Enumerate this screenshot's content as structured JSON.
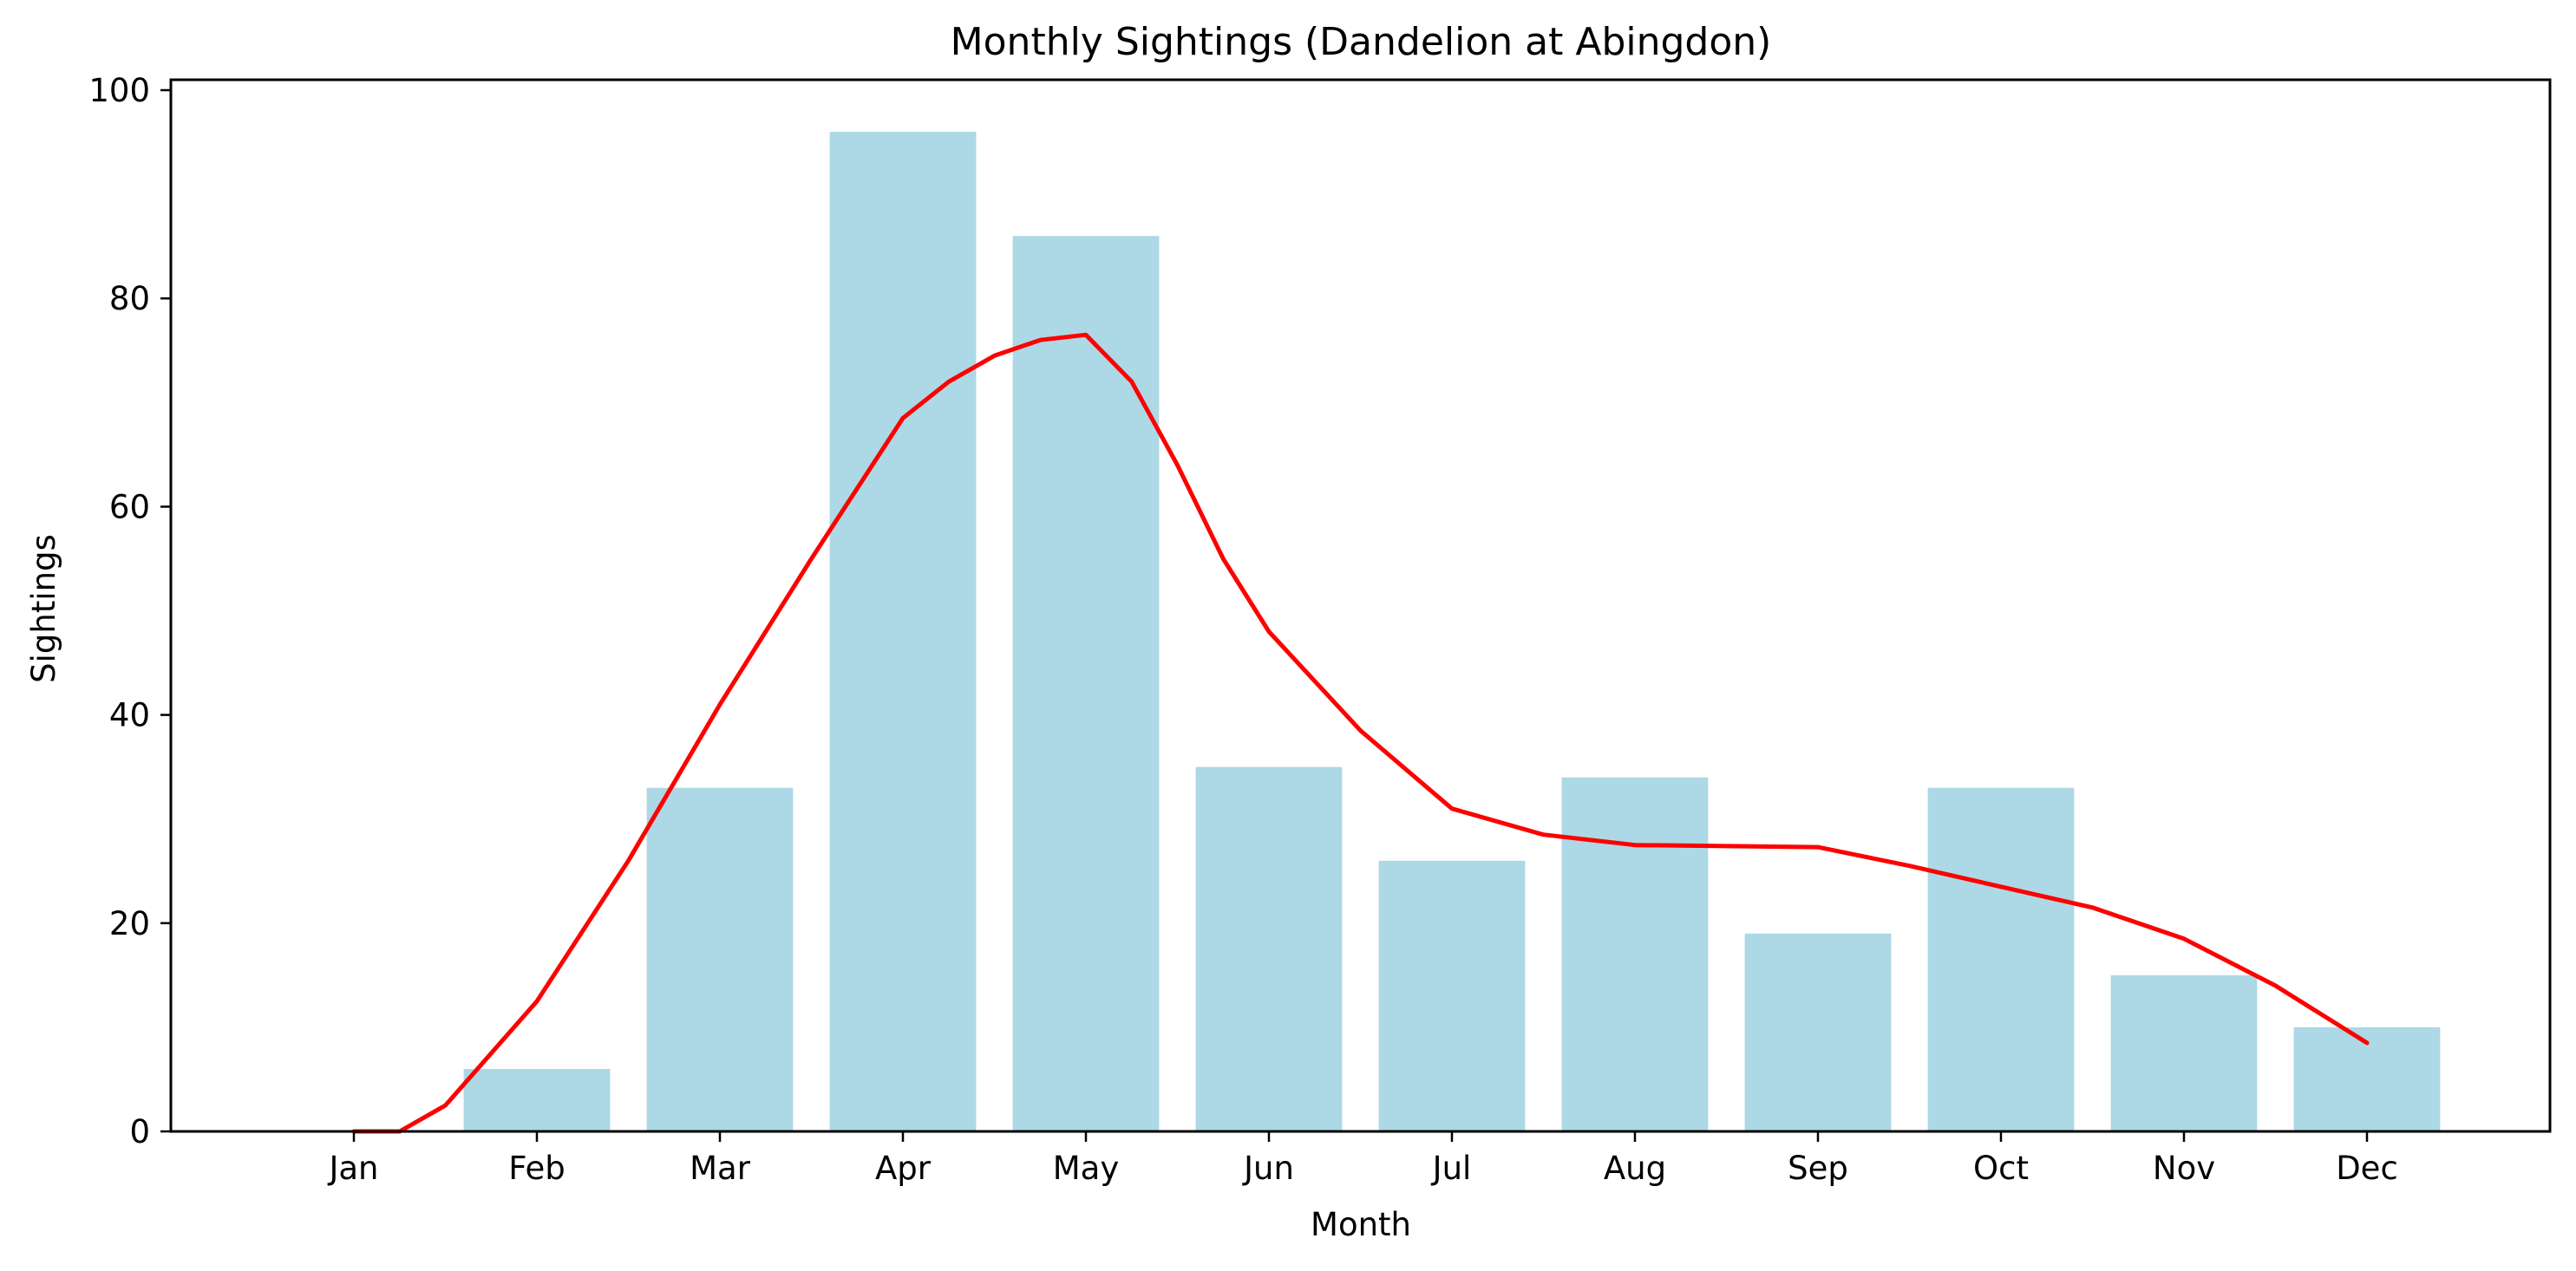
{
  "chart_data": {
    "type": "bar",
    "title": "Monthly Sightings (Dandelion at Abingdon)",
    "xlabel": "Month",
    "ylabel": "Sightings",
    "categories": [
      "Jan",
      "Feb",
      "Mar",
      "Apr",
      "May",
      "Jun",
      "Jul",
      "Aug",
      "Sep",
      "Oct",
      "Nov",
      "Dec"
    ],
    "values": [
      0,
      6,
      33,
      96,
      86,
      35,
      26,
      34,
      19,
      33,
      15,
      10
    ],
    "ylim": [
      0,
      101
    ],
    "yticks": [
      0,
      20,
      40,
      60,
      80,
      100
    ],
    "xlim": [
      -1,
      12
    ],
    "bar_width": 0.8,
    "bar_color": "#add8e6",
    "trend_line": {
      "color": "#ff0000",
      "points": [
        [
          0,
          0
        ],
        [
          0.25,
          0
        ],
        [
          0.5,
          2.5
        ],
        [
          1,
          12.5
        ],
        [
          1.5,
          26
        ],
        [
          2,
          41
        ],
        [
          2.5,
          55
        ],
        [
          3,
          68.5
        ],
        [
          3.25,
          72
        ],
        [
          3.5,
          74.5
        ],
        [
          3.75,
          76
        ],
        [
          4,
          76.5
        ],
        [
          4.25,
          72
        ],
        [
          4.5,
          64
        ],
        [
          4.75,
          55
        ],
        [
          5,
          48
        ],
        [
          5.5,
          38.5
        ],
        [
          6,
          31
        ],
        [
          6.5,
          28.5
        ],
        [
          7,
          27.5
        ],
        [
          7.5,
          27.4
        ],
        [
          8,
          27.3
        ],
        [
          8.5,
          25.5
        ],
        [
          9,
          23.5
        ],
        [
          9.5,
          21.5
        ],
        [
          10,
          18.5
        ],
        [
          10.5,
          14
        ],
        [
          11,
          8.5
        ]
      ]
    },
    "grid": false,
    "legend": "none"
  }
}
